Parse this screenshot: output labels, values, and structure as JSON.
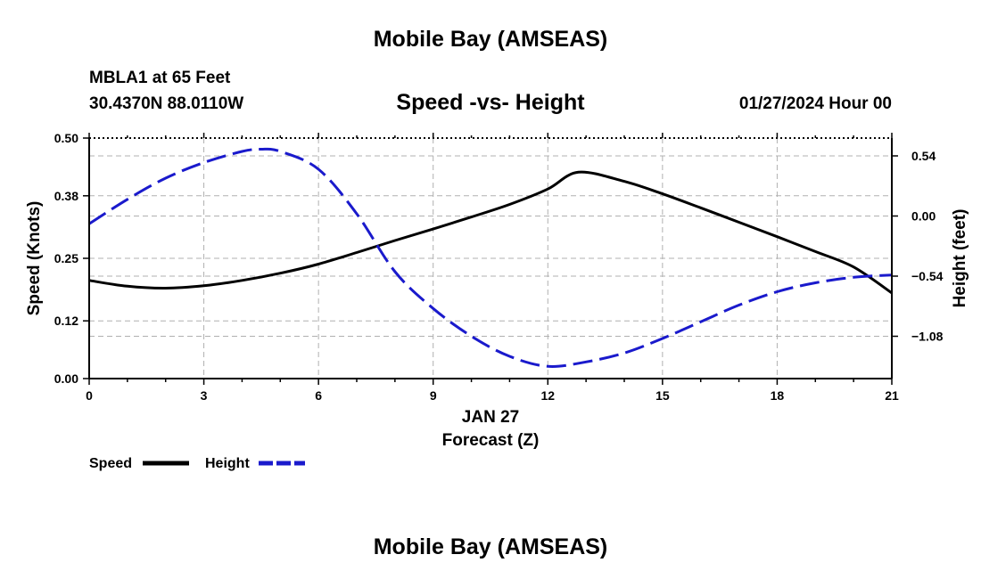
{
  "header": {
    "title": "Mobile Bay (AMSEAS)",
    "station": "MBLA1 at 65 Feet",
    "coords": "30.4370N  88.0110W",
    "plot_title": "Speed -vs- Height",
    "datetime": "01/27/2024 Hour 00"
  },
  "footer": {
    "title": "Mobile Bay (AMSEAS)"
  },
  "colors": {
    "speed": "#000000",
    "height": "#1a1acc",
    "grid": "#b0b0b0"
  },
  "chart_data": {
    "type": "line",
    "title": "Speed -vs- Height",
    "xlabel": "Forecast (Z)",
    "xdate_label": "JAN 27",
    "ylabel": "Speed (Knots)",
    "y2label": "Height (feet)",
    "xlim": [
      0,
      21
    ],
    "ylim": [
      0,
      0.5
    ],
    "y2lim": [
      -1.46,
      0.7
    ],
    "x_ticks": [
      0,
      3,
      6,
      9,
      12,
      15,
      18,
      21
    ],
    "y_ticks": [
      0.0,
      0.12,
      0.25,
      0.38,
      0.5
    ],
    "y_tick_labels": [
      "0.00",
      "0.12",
      "0.25",
      "0.38",
      "0.50"
    ],
    "y2_ticks": [
      0.54,
      0.0,
      -0.54,
      -1.08
    ],
    "y2_tick_labels": [
      "0.54",
      "0.00",
      "−0.54",
      "−1.08"
    ],
    "grid": true,
    "legend": {
      "placement": "bottom-left",
      "entries": [
        "Speed",
        "Height"
      ]
    },
    "series": [
      {
        "name": "Speed",
        "axis": "left",
        "style": "solid",
        "x": [
          0,
          1,
          2,
          3,
          4,
          5,
          6,
          7,
          8,
          9,
          10,
          11,
          12,
          12.8,
          14,
          15,
          16,
          17,
          18,
          19,
          20,
          21
        ],
        "values": [
          0.204,
          0.192,
          0.188,
          0.193,
          0.204,
          0.219,
          0.238,
          0.262,
          0.287,
          0.311,
          0.336,
          0.362,
          0.394,
          0.429,
          0.41,
          0.384,
          0.355,
          0.325,
          0.295,
          0.264,
          0.232,
          0.178
        ]
      },
      {
        "name": "Height",
        "axis": "right",
        "style": "dashed",
        "x": [
          0,
          1,
          2,
          3,
          4,
          4.5,
          5,
          6,
          7,
          8,
          9,
          10,
          11,
          12,
          13,
          14,
          15,
          16,
          17,
          18,
          19,
          20,
          21
        ],
        "values": [
          -0.07,
          0.15,
          0.34,
          0.48,
          0.58,
          0.6,
          0.58,
          0.42,
          0.02,
          -0.5,
          -0.83,
          -1.08,
          -1.26,
          -1.35,
          -1.31,
          -1.23,
          -1.1,
          -0.95,
          -0.8,
          -0.68,
          -0.6,
          -0.55,
          -0.53
        ]
      }
    ]
  }
}
